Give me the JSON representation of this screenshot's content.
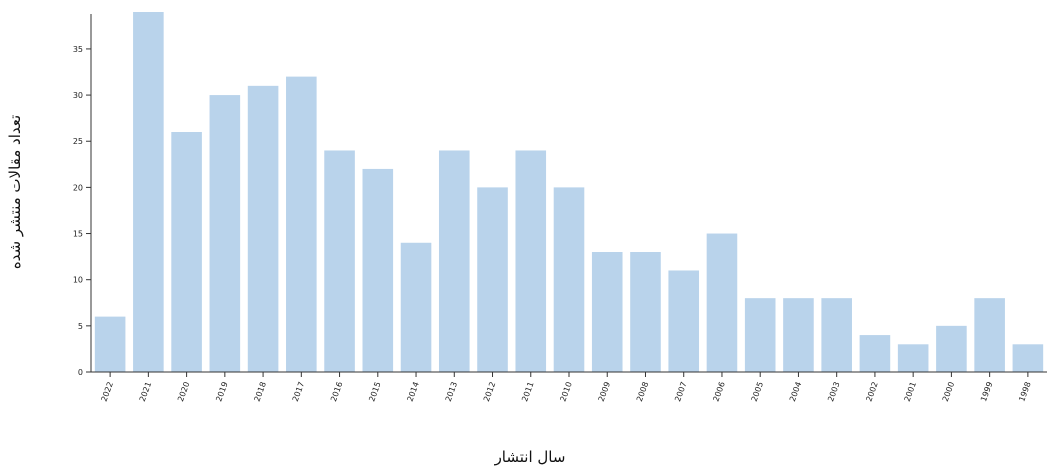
{
  "chart_data": {
    "type": "bar",
    "categories": [
      "2022",
      "2021",
      "2020",
      "2019",
      "2018",
      "2017",
      "2016",
      "2015",
      "2014",
      "2013",
      "2012",
      "2011",
      "2010",
      "2009",
      "2008",
      "2007",
      "2006",
      "2005",
      "2004",
      "2003",
      "2002",
      "2001",
      "2000",
      "1999",
      "1998"
    ],
    "values": [
      6,
      39,
      26,
      30,
      31,
      32,
      24,
      22,
      14,
      24,
      20,
      24,
      20,
      13,
      13,
      11,
      15,
      8,
      8,
      8,
      4,
      3,
      5,
      8,
      3
    ],
    "xlabel": "سال انتشار",
    "ylabel": "تعداد مقالات منتشر شده",
    "ylim": [
      0,
      39
    ],
    "yticks": [
      0,
      5,
      10,
      15,
      20,
      25,
      30,
      35
    ],
    "grid": false,
    "bar_color": "#b9d3eb",
    "axis_color": "#333333"
  }
}
